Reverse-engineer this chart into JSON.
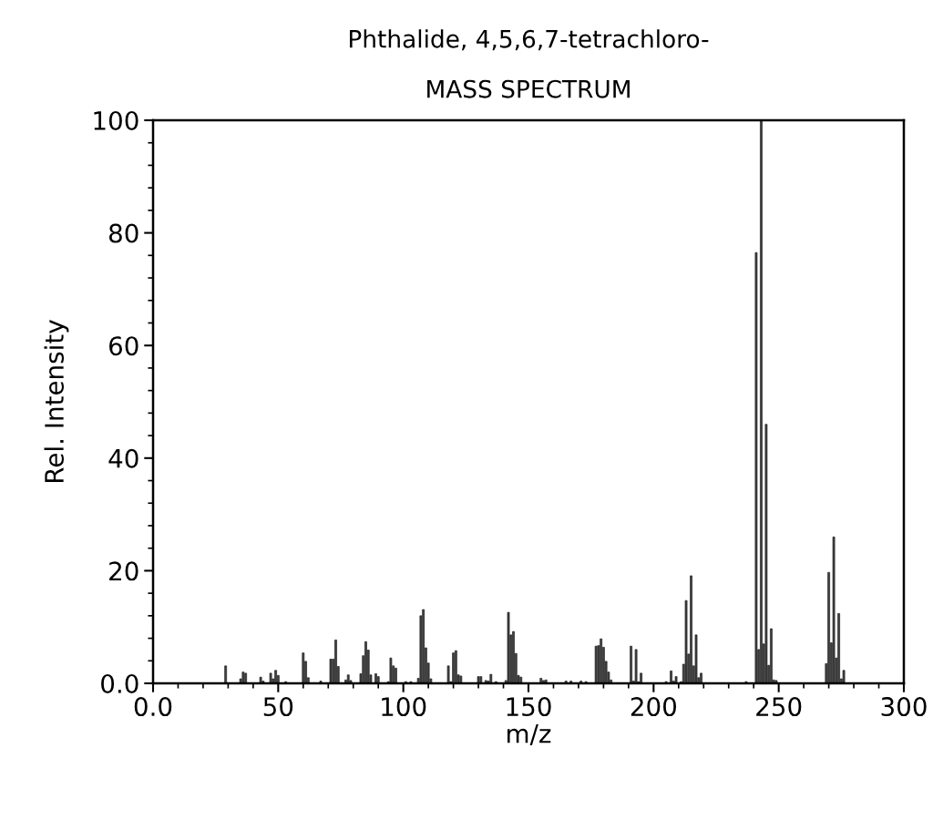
{
  "chart_data": {
    "type": "bar",
    "title": "Phthalide, 4,5,6,7-tetrachloro-",
    "subtitle": "MASS SPECTRUM",
    "xlabel": "m/z",
    "ylabel": "Rel. Intensity",
    "x": [
      29,
      35,
      36,
      37,
      43,
      44,
      47,
      48,
      49,
      50,
      53,
      60,
      61,
      62,
      67,
      71,
      72,
      73,
      74,
      77,
      78,
      79,
      83,
      84,
      85,
      86,
      87,
      89,
      90,
      94,
      95,
      96,
      97,
      101,
      103,
      106,
      107,
      108,
      109,
      110,
      111,
      118,
      119,
      120,
      121,
      122,
      123,
      130,
      131,
      133,
      134,
      135,
      137,
      141,
      142,
      143,
      144,
      145,
      146,
      147,
      155,
      156,
      157,
      165,
      167,
      171,
      173,
      177,
      178,
      179,
      180,
      181,
      182,
      183,
      191,
      192,
      193,
      194,
      195,
      205,
      207,
      208,
      209,
      211,
      212,
      213,
      214,
      215,
      216,
      217,
      218,
      219,
      237,
      241,
      242,
      243,
      244,
      245,
      246,
      247,
      248,
      249,
      269,
      270,
      271,
      272,
      273,
      274,
      275,
      276
    ],
    "values": [
      3.1,
      0.8,
      2.0,
      1.8,
      1.1,
      0.4,
      1.8,
      0.8,
      2.3,
      1.4,
      0.3,
      5.4,
      3.9,
      1.0,
      0.4,
      4.3,
      4.3,
      7.7,
      3.0,
      0.6,
      1.5,
      0.5,
      1.7,
      4.9,
      7.4,
      5.9,
      1.5,
      1.7,
      1.2,
      0.3,
      4.5,
      3.1,
      2.7,
      0.3,
      0.3,
      0.9,
      12.0,
      13.1,
      6.3,
      3.6,
      0.8,
      3.1,
      0.3,
      5.4,
      5.8,
      1.5,
      1.3,
      1.2,
      1.2,
      0.5,
      0.4,
      1.6,
      0.3,
      0.5,
      12.6,
      8.6,
      9.2,
      5.3,
      1.4,
      1.1,
      0.9,
      0.5,
      0.6,
      0.4,
      0.4,
      0.4,
      0.3,
      6.6,
      6.7,
      7.9,
      6.4,
      3.9,
      2.0,
      0.6,
      6.6,
      0.4,
      6.0,
      0.3,
      1.8,
      0.3,
      2.2,
      0.4,
      1.2,
      0.3,
      3.4,
      14.7,
      5.2,
      19.1,
      3.1,
      8.6,
      1.0,
      1.8,
      0.3,
      76.5,
      6.0,
      100,
      7.0,
      46.0,
      3.2,
      9.7,
      0.6,
      0.5,
      3.5,
      19.7,
      7.2,
      26.0,
      4.5,
      12.4,
      0.8,
      2.3
    ],
    "color": "#404040",
    "xlim": [
      0,
      300
    ],
    "xticks": [
      {
        "value": 0,
        "label": "0.0"
      },
      50,
      100,
      150,
      200,
      250,
      300
    ],
    "ylim": [
      0,
      100
    ],
    "yticks": [
      {
        "value": 0,
        "label": "0.0"
      },
      20,
      40,
      60,
      80,
      100
    ],
    "grid": false,
    "legend": false
  }
}
